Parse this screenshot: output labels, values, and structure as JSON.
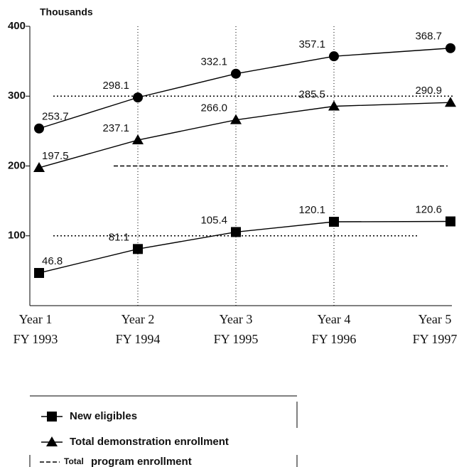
{
  "chart_data": {
    "type": "line",
    "y_label": "Thousands",
    "categories": [
      "Year 1",
      "Year 2",
      "Year 3",
      "Year 4",
      "Year 5"
    ],
    "category_sublabels": [
      "FY 1993",
      "FY 1994",
      "FY 1995",
      "FY 1996",
      "FY 1997"
    ],
    "ylim": [
      0,
      400
    ],
    "yticks": [
      100,
      200,
      300,
      400
    ],
    "series": [
      {
        "marker": "circle",
        "color": "#000",
        "values": [
          253.7,
          298.1,
          332.1,
          357.1,
          368.7
        ]
      },
      {
        "name": "Total demonstration enrollment",
        "marker": "triangle",
        "color": "#000",
        "values": [
          197.5,
          237.1,
          266.0,
          285.5,
          290.9
        ],
        "value_labels": [
          "197.5",
          "237.1",
          "266.0",
          "285.5",
          "290.9"
        ]
      },
      {
        "name": "New eligibles",
        "marker": "square",
        "color": "#000",
        "values": [
          46.8,
          81.1,
          105.4,
          120.1,
          120.6
        ],
        "value_labels": [
          "46.8",
          "81.1",
          "105.4",
          "120.1",
          "120.6"
        ]
      }
    ],
    "reference_series": {
      "name": "Total program enrollment",
      "dash": "6 3",
      "values": [
        300,
        200,
        100
      ]
    },
    "legend_prefix": "Total",
    "legend_rest": "program enrollment"
  }
}
